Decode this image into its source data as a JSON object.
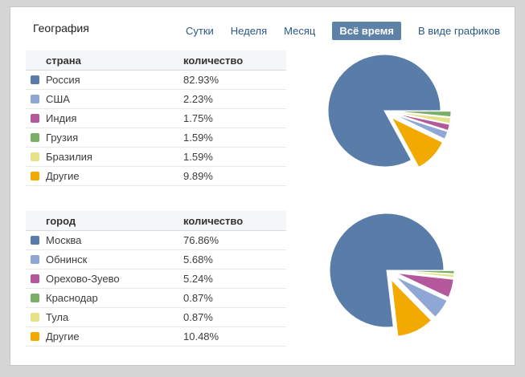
{
  "header": {
    "title": "География",
    "tabs": [
      {
        "label": "Сутки",
        "selected": false
      },
      {
        "label": "Неделя",
        "selected": false
      },
      {
        "label": "Месяц",
        "selected": false
      },
      {
        "label": "Всё время",
        "selected": true
      }
    ],
    "view_link": "В виде графиков"
  },
  "colors": {
    "link": "#2a5885",
    "selected_tab_bg": "#5e81a8",
    "palette": [
      "#5a7ca8",
      "#8fa7d4",
      "#b4589b",
      "#7baf68",
      "#e5e287",
      "#f2a900"
    ]
  },
  "countries_table": {
    "columns": {
      "label": "страна",
      "value": "количество"
    },
    "rows": [
      {
        "label": "Россия",
        "value": "82.93%",
        "color": "#5a7ca8"
      },
      {
        "label": "США",
        "value": "2.23%",
        "color": "#8fa7d4"
      },
      {
        "label": "Индия",
        "value": "1.75%",
        "color": "#b4589b"
      },
      {
        "label": "Грузия",
        "value": "1.59%",
        "color": "#7baf68"
      },
      {
        "label": "Бразилия",
        "value": "1.59%",
        "color": "#e5e287"
      },
      {
        "label": "Другие",
        "value": "9.89%",
        "color": "#f2a900"
      }
    ]
  },
  "cities_table": {
    "columns": {
      "label": "город",
      "value": "количество"
    },
    "rows": [
      {
        "label": "Москва",
        "value": "76.86%",
        "color": "#5a7ca8"
      },
      {
        "label": "Обнинск",
        "value": "5.68%",
        "color": "#8fa7d4"
      },
      {
        "label": "Орехово-Зуево",
        "value": "5.24%",
        "color": "#b4589b"
      },
      {
        "label": "Краснодар",
        "value": "0.87%",
        "color": "#7baf68"
      },
      {
        "label": "Тула",
        "value": "0.87%",
        "color": "#e5e287"
      },
      {
        "label": "Другие",
        "value": "10.48%",
        "color": "#f2a900"
      }
    ]
  },
  "chart_data": [
    {
      "type": "pie",
      "title": "страна",
      "labels": [
        "Россия",
        "США",
        "Индия",
        "Грузия",
        "Бразилия",
        "Другие"
      ],
      "values": [
        82.93,
        2.23,
        1.75,
        1.59,
        1.59,
        9.89
      ],
      "colors": [
        "#5a7ca8",
        "#8fa7d4",
        "#b4589b",
        "#7baf68",
        "#e5e287",
        "#f2a900"
      ],
      "unit": "%",
      "start_angle_deg": 0,
      "direction": "clockwise",
      "slice_order": "ascending-by-value",
      "exploded": "all-but-largest",
      "legend_position": "left-table"
    },
    {
      "type": "pie",
      "title": "город",
      "labels": [
        "Москва",
        "Обнинск",
        "Орехово-Зуево",
        "Краснодар",
        "Тула",
        "Другие"
      ],
      "values": [
        76.86,
        5.68,
        5.24,
        0.87,
        0.87,
        10.48
      ],
      "colors": [
        "#5a7ca8",
        "#8fa7d4",
        "#b4589b",
        "#7baf68",
        "#e5e287",
        "#f2a900"
      ],
      "unit": "%",
      "start_angle_deg": 0,
      "direction": "clockwise",
      "slice_order": "ascending-by-value",
      "exploded": "all-but-largest",
      "legend_position": "left-table"
    }
  ]
}
